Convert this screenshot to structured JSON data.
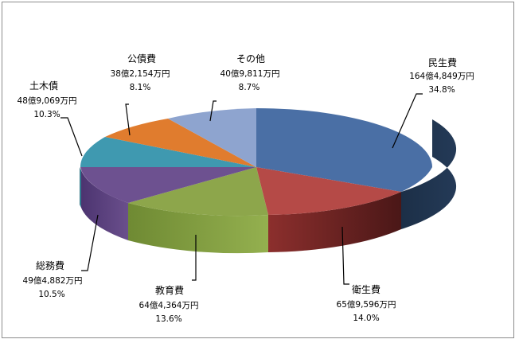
{
  "chart_data": {
    "type": "pie",
    "variant": "3d",
    "slices": [
      {
        "name": "民生費",
        "amount": "164億4,849万円",
        "percent": "34.8%",
        "value": 34.8,
        "color": "#4a6fa5",
        "side": "#1e3148"
      },
      {
        "name": "衛生費",
        "amount": "65億9,596万円",
        "percent": "14.0%",
        "value": 14.0,
        "color": "#b54a47",
        "side": "#5a1e1e"
      },
      {
        "name": "教育費",
        "amount": "64億4,364万円",
        "percent": "13.6%",
        "value": 13.6,
        "color": "#8da64b",
        "side": "#8da64b"
      },
      {
        "name": "総務費",
        "amount": "49億4,882万円",
        "percent": "10.5%",
        "value": 10.5,
        "color": "#6d5190",
        "side": "#5a3f7a"
      },
      {
        "name": "土木債",
        "amount": "48億9,069万円",
        "percent": "10.3%",
        "value": 10.3,
        "color": "#3f99b0",
        "side": "#2f7a8e"
      },
      {
        "name": "公債費",
        "amount": "38億2,154万円",
        "percent": "8.1%",
        "value": 8.1,
        "color": "#e07c2e",
        "side": "#b6601f"
      },
      {
        "name": "その他",
        "amount": "40億9,811万円",
        "percent": "8.7%",
        "value": 8.7,
        "color": "#8ea4cf",
        "side": "#6f86b4"
      }
    ]
  }
}
